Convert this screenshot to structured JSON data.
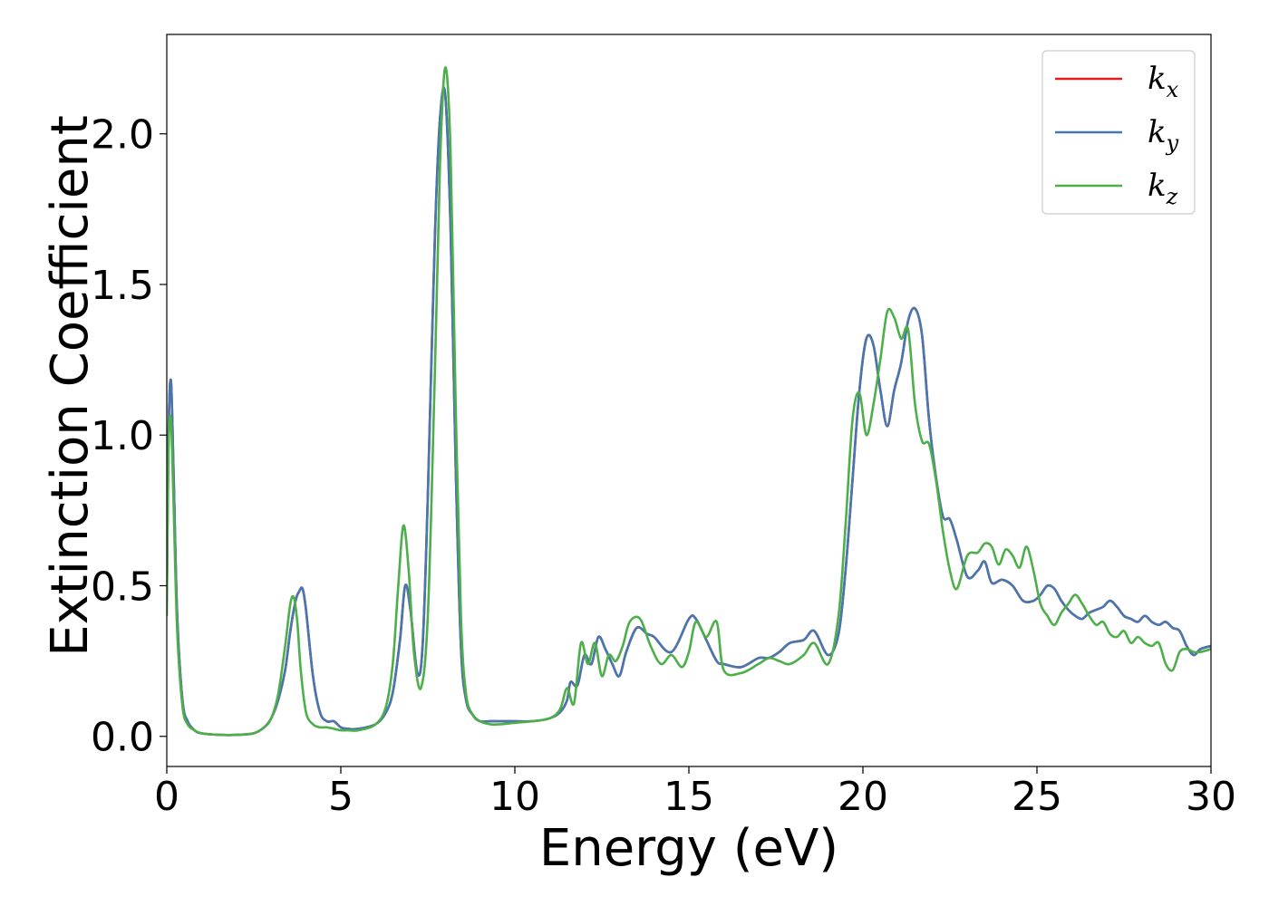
{
  "chart_data": {
    "type": "line",
    "title": "",
    "xlabel": "Energy (eV)",
    "ylabel": "Extinction Coefficient",
    "xlim": [
      0,
      30
    ],
    "ylim": [
      -0.1,
      2.33
    ],
    "xticks": [
      0,
      5,
      10,
      15,
      20,
      25,
      30
    ],
    "xtick_labels": [
      "0",
      "5",
      "10",
      "15",
      "20",
      "25",
      "30"
    ],
    "yticks": [
      0.0,
      0.5,
      1.0,
      1.5,
      2.0
    ],
    "ytick_labels": [
      "0.0",
      "0.5",
      "1.0",
      "1.5",
      "2.0"
    ],
    "grid": false,
    "legend_position": "top-right",
    "series": [
      {
        "name": "k_x",
        "label_base": "k",
        "label_sub": "x",
        "color": "#e41a1c",
        "x": [
          0,
          0.05,
          0.12,
          0.2,
          0.3,
          0.45,
          0.6,
          0.8,
          1.0,
          1.5,
          2.0,
          2.5,
          2.8,
          3.0,
          3.2,
          3.4,
          3.55,
          3.7,
          3.8,
          3.9,
          4.0,
          4.2,
          4.4,
          4.6,
          4.8,
          5.0,
          5.2,
          5.5,
          6.0,
          6.3,
          6.5,
          6.7,
          6.85,
          7.0,
          7.2,
          7.35,
          7.5,
          7.7,
          7.85,
          8.0,
          8.15,
          8.3,
          8.45,
          8.6,
          8.8,
          9.0,
          9.3,
          9.6,
          10.0,
          10.5,
          11.0,
          11.3,
          11.5,
          11.6,
          11.8,
          12.0,
          12.2,
          12.4,
          12.6,
          12.8,
          13.0,
          13.2,
          13.5,
          13.8,
          14.0,
          14.5,
          15.0,
          15.2,
          15.5,
          15.8,
          16.0,
          16.5,
          17.0,
          17.3,
          17.6,
          17.9,
          18.3,
          18.6,
          19.0,
          19.3,
          19.5,
          19.7,
          19.9,
          20.1,
          20.3,
          20.5,
          20.7,
          20.9,
          21.1,
          21.3,
          21.5,
          21.7,
          21.9,
          22.1,
          22.3,
          22.5,
          22.7,
          23.0,
          23.3,
          23.5,
          23.7,
          24.0,
          24.3,
          24.6,
          24.9,
          25.1,
          25.3,
          25.5,
          25.7,
          25.9,
          26.1,
          26.3,
          26.5,
          26.7,
          26.9,
          27.1,
          27.3,
          27.5,
          27.7,
          27.9,
          28.1,
          28.3,
          28.5,
          28.7,
          28.9,
          29.1,
          29.3,
          29.5,
          29.7,
          30.0
        ],
        "y": [
          0.45,
          1.0,
          1.18,
          0.85,
          0.4,
          0.12,
          0.05,
          0.02,
          0.01,
          0.005,
          0.005,
          0.01,
          0.03,
          0.06,
          0.12,
          0.22,
          0.35,
          0.45,
          0.48,
          0.49,
          0.42,
          0.2,
          0.08,
          0.05,
          0.05,
          0.03,
          0.025,
          0.025,
          0.04,
          0.08,
          0.15,
          0.32,
          0.5,
          0.42,
          0.21,
          0.3,
          0.8,
          1.65,
          2.05,
          2.13,
          1.7,
          0.9,
          0.3,
          0.12,
          0.07,
          0.05,
          0.05,
          0.05,
          0.05,
          0.05,
          0.06,
          0.08,
          0.12,
          0.18,
          0.17,
          0.27,
          0.24,
          0.33,
          0.29,
          0.24,
          0.2,
          0.28,
          0.36,
          0.34,
          0.33,
          0.28,
          0.39,
          0.39,
          0.32,
          0.25,
          0.24,
          0.23,
          0.26,
          0.26,
          0.28,
          0.31,
          0.32,
          0.35,
          0.27,
          0.34,
          0.55,
          0.85,
          1.15,
          1.32,
          1.3,
          1.15,
          1.03,
          1.15,
          1.24,
          1.38,
          1.42,
          1.33,
          1.05,
          0.86,
          0.73,
          0.72,
          0.65,
          0.53,
          0.55,
          0.58,
          0.51,
          0.52,
          0.5,
          0.45,
          0.45,
          0.47,
          0.5,
          0.49,
          0.45,
          0.42,
          0.4,
          0.39,
          0.41,
          0.42,
          0.43,
          0.45,
          0.43,
          0.4,
          0.39,
          0.38,
          0.4,
          0.38,
          0.37,
          0.38,
          0.36,
          0.35,
          0.3,
          0.27,
          0.29,
          0.3
        ]
      },
      {
        "name": "k_y",
        "label_base": "k",
        "label_sub": "y",
        "color": "#4577b0",
        "x": [
          0,
          0.05,
          0.12,
          0.2,
          0.3,
          0.45,
          0.6,
          0.8,
          1.0,
          1.5,
          2.0,
          2.5,
          2.8,
          3.0,
          3.2,
          3.4,
          3.55,
          3.7,
          3.8,
          3.9,
          4.0,
          4.2,
          4.4,
          4.6,
          4.8,
          5.0,
          5.2,
          5.5,
          6.0,
          6.3,
          6.5,
          6.7,
          6.85,
          7.0,
          7.2,
          7.35,
          7.5,
          7.7,
          7.85,
          8.0,
          8.15,
          8.3,
          8.45,
          8.6,
          8.8,
          9.0,
          9.3,
          9.6,
          10.0,
          10.5,
          11.0,
          11.3,
          11.5,
          11.6,
          11.8,
          12.0,
          12.2,
          12.4,
          12.6,
          12.8,
          13.0,
          13.2,
          13.5,
          13.8,
          14.0,
          14.5,
          15.0,
          15.2,
          15.5,
          15.8,
          16.0,
          16.5,
          17.0,
          17.3,
          17.6,
          17.9,
          18.3,
          18.6,
          19.0,
          19.3,
          19.5,
          19.7,
          19.9,
          20.1,
          20.3,
          20.5,
          20.7,
          20.9,
          21.1,
          21.3,
          21.5,
          21.7,
          21.9,
          22.1,
          22.3,
          22.5,
          22.7,
          23.0,
          23.3,
          23.5,
          23.7,
          24.0,
          24.3,
          24.6,
          24.9,
          25.1,
          25.3,
          25.5,
          25.7,
          25.9,
          26.1,
          26.3,
          26.5,
          26.7,
          26.9,
          27.1,
          27.3,
          27.5,
          27.7,
          27.9,
          28.1,
          28.3,
          28.5,
          28.7,
          28.9,
          29.1,
          29.3,
          29.5,
          29.7,
          30.0
        ],
        "y": [
          0.45,
          1.0,
          1.18,
          0.85,
          0.4,
          0.12,
          0.05,
          0.02,
          0.01,
          0.005,
          0.005,
          0.01,
          0.03,
          0.06,
          0.12,
          0.22,
          0.35,
          0.45,
          0.48,
          0.49,
          0.42,
          0.2,
          0.08,
          0.05,
          0.05,
          0.03,
          0.025,
          0.025,
          0.04,
          0.08,
          0.15,
          0.32,
          0.5,
          0.42,
          0.21,
          0.3,
          0.8,
          1.65,
          2.05,
          2.13,
          1.7,
          0.9,
          0.3,
          0.12,
          0.07,
          0.05,
          0.05,
          0.05,
          0.05,
          0.05,
          0.06,
          0.08,
          0.12,
          0.18,
          0.17,
          0.27,
          0.24,
          0.33,
          0.29,
          0.24,
          0.2,
          0.28,
          0.36,
          0.34,
          0.33,
          0.28,
          0.39,
          0.39,
          0.32,
          0.25,
          0.24,
          0.23,
          0.26,
          0.26,
          0.28,
          0.31,
          0.32,
          0.35,
          0.27,
          0.34,
          0.55,
          0.85,
          1.15,
          1.32,
          1.3,
          1.15,
          1.03,
          1.15,
          1.24,
          1.38,
          1.42,
          1.33,
          1.05,
          0.86,
          0.73,
          0.72,
          0.65,
          0.53,
          0.55,
          0.58,
          0.51,
          0.52,
          0.5,
          0.45,
          0.45,
          0.47,
          0.5,
          0.49,
          0.45,
          0.42,
          0.4,
          0.39,
          0.41,
          0.42,
          0.43,
          0.45,
          0.43,
          0.4,
          0.39,
          0.38,
          0.4,
          0.38,
          0.37,
          0.38,
          0.36,
          0.35,
          0.3,
          0.27,
          0.29,
          0.3
        ]
      },
      {
        "name": "k_z",
        "label_base": "k",
        "label_sub": "z",
        "color": "#4daf4a",
        "x": [
          0,
          0.05,
          0.12,
          0.2,
          0.3,
          0.45,
          0.6,
          0.8,
          1.0,
          1.5,
          2.0,
          2.5,
          2.8,
          3.0,
          3.2,
          3.4,
          3.55,
          3.65,
          3.75,
          3.85,
          4.0,
          4.2,
          4.4,
          4.6,
          4.8,
          5.0,
          5.2,
          5.5,
          6.0,
          6.3,
          6.5,
          6.65,
          6.8,
          6.95,
          7.1,
          7.3,
          7.5,
          7.7,
          7.85,
          8.0,
          8.15,
          8.3,
          8.45,
          8.6,
          8.8,
          9.0,
          9.3,
          9.6,
          10.0,
          10.5,
          11.0,
          11.3,
          11.5,
          11.7,
          11.9,
          12.1,
          12.3,
          12.5,
          12.7,
          12.9,
          13.1,
          13.3,
          13.6,
          13.9,
          14.2,
          14.5,
          14.8,
          15.0,
          15.2,
          15.5,
          15.8,
          16.0,
          16.5,
          17.0,
          17.3,
          17.6,
          17.9,
          18.3,
          18.6,
          19.0,
          19.3,
          19.5,
          19.7,
          19.9,
          20.1,
          20.3,
          20.5,
          20.7,
          20.9,
          21.1,
          21.3,
          21.5,
          21.7,
          21.9,
          22.1,
          22.3,
          22.5,
          22.7,
          23.0,
          23.3,
          23.5,
          23.7,
          23.9,
          24.1,
          24.3,
          24.5,
          24.7,
          24.9,
          25.1,
          25.3,
          25.5,
          25.7,
          25.9,
          26.1,
          26.3,
          26.5,
          26.7,
          26.9,
          27.1,
          27.3,
          27.5,
          27.7,
          27.9,
          28.1,
          28.3,
          28.5,
          28.7,
          28.9,
          29.1,
          29.3,
          29.5,
          29.7,
          30.0
        ],
        "y": [
          0.4,
          0.95,
          1.05,
          0.75,
          0.35,
          0.1,
          0.04,
          0.02,
          0.01,
          0.005,
          0.005,
          0.01,
          0.03,
          0.06,
          0.14,
          0.3,
          0.44,
          0.46,
          0.38,
          0.22,
          0.08,
          0.04,
          0.03,
          0.03,
          0.025,
          0.02,
          0.02,
          0.02,
          0.04,
          0.1,
          0.25,
          0.5,
          0.7,
          0.55,
          0.28,
          0.16,
          0.4,
          1.2,
          1.9,
          2.22,
          1.95,
          1.1,
          0.4,
          0.14,
          0.07,
          0.05,
          0.04,
          0.04,
          0.045,
          0.05,
          0.06,
          0.09,
          0.16,
          0.11,
          0.31,
          0.24,
          0.31,
          0.2,
          0.27,
          0.25,
          0.3,
          0.38,
          0.39,
          0.3,
          0.24,
          0.27,
          0.23,
          0.28,
          0.38,
          0.33,
          0.38,
          0.22,
          0.21,
          0.24,
          0.26,
          0.25,
          0.24,
          0.27,
          0.31,
          0.24,
          0.4,
          0.7,
          1.05,
          1.14,
          1.0,
          1.1,
          1.25,
          1.41,
          1.39,
          1.32,
          1.35,
          1.1,
          0.98,
          0.97,
          0.85,
          0.68,
          0.55,
          0.49,
          0.6,
          0.61,
          0.64,
          0.63,
          0.57,
          0.62,
          0.6,
          0.56,
          0.63,
          0.55,
          0.44,
          0.4,
          0.37,
          0.41,
          0.44,
          0.47,
          0.44,
          0.4,
          0.37,
          0.38,
          0.34,
          0.33,
          0.35,
          0.31,
          0.33,
          0.31,
          0.3,
          0.31,
          0.24,
          0.22,
          0.28,
          0.29,
          0.28,
          0.28,
          0.29
        ]
      }
    ]
  }
}
